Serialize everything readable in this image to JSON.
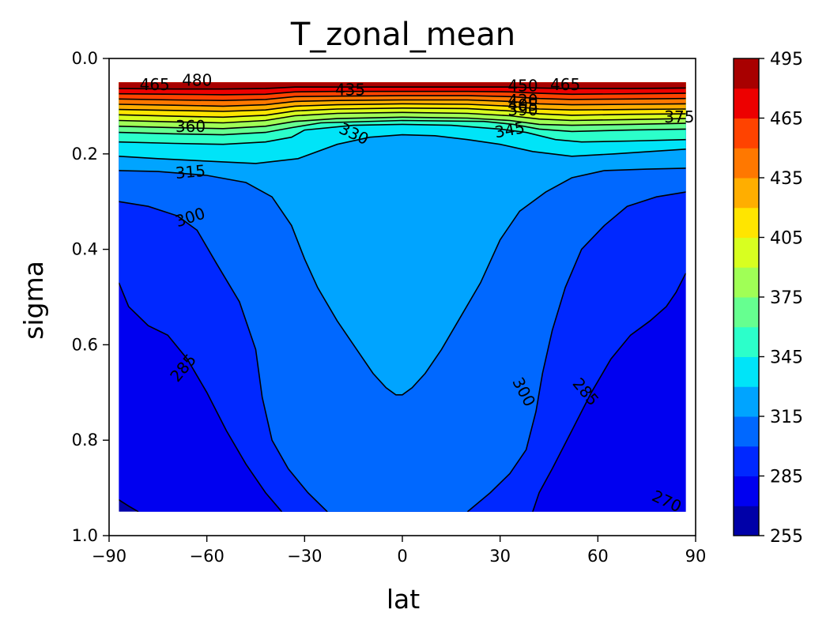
{
  "chart_data": {
    "type": "heatmap",
    "subtype": "filled-contour",
    "title": "T_zonal_mean",
    "xlabel": "lat",
    "ylabel": "sigma",
    "xlim": [
      -90,
      90
    ],
    "ylim": [
      1.0,
      0.0
    ],
    "y_inverted": true,
    "data_extent": {
      "lat": [
        -87,
        87
      ],
      "sigma": [
        0.05,
        0.95
      ]
    },
    "xticks": [
      "−90",
      "−60",
      "−30",
      "0",
      "30",
      "60",
      "90"
    ],
    "xtick_values": [
      -90,
      -60,
      -30,
      0,
      30,
      60,
      90
    ],
    "yticks": [
      "0.0",
      "0.2",
      "0.4",
      "0.6",
      "0.8",
      "1.0"
    ],
    "ytick_values": [
      0.0,
      0.2,
      0.4,
      0.6,
      0.8,
      1.0
    ],
    "colormap": "jet",
    "levels": [
      255,
      270,
      285,
      300,
      315,
      330,
      345,
      360,
      375,
      390,
      405,
      420,
      435,
      450,
      465,
      480,
      495
    ],
    "level_colors": [
      "#0000a8",
      "#0000f0",
      "#0028ff",
      "#0068ff",
      "#00a4ff",
      "#00e4f8",
      "#2cffca",
      "#66ff90",
      "#a0ff56",
      "#d8ff20",
      "#ffe500",
      "#ffae00",
      "#ff7800",
      "#ff4300",
      "#ed0000",
      "#a80000"
    ],
    "colorbar_ticks": [
      "255",
      "285",
      "315",
      "345",
      "375",
      "405",
      "435",
      "465",
      "495"
    ],
    "colorbar_tick_values": [
      255,
      285,
      315,
      345,
      375,
      405,
      435,
      465,
      495
    ],
    "grid": false,
    "contours": [
      {
        "level": 270,
        "points": [
          [
            -87,
            0.925
          ],
          [
            -84,
            0.938
          ],
          [
            -81,
            0.95
          ]
        ]
      },
      {
        "level": 285,
        "points": [
          [
            -87,
            0.47
          ],
          [
            -84,
            0.52
          ],
          [
            -78,
            0.56
          ],
          [
            -72,
            0.58
          ],
          [
            -66,
            0.63
          ],
          [
            -60,
            0.7
          ],
          [
            -54,
            0.78
          ],
          [
            -48,
            0.85
          ],
          [
            -42,
            0.91
          ],
          [
            -37,
            0.95
          ]
        ]
      },
      {
        "level": 285,
        "points": [
          [
            87,
            0.45
          ],
          [
            84,
            0.49
          ],
          [
            81,
            0.52
          ],
          [
            76,
            0.55
          ],
          [
            70,
            0.58
          ],
          [
            64,
            0.63
          ],
          [
            58,
            0.7
          ],
          [
            52,
            0.78
          ],
          [
            46,
            0.86
          ],
          [
            42,
            0.91
          ],
          [
            40,
            0.95
          ]
        ]
      },
      {
        "level": 300,
        "points": [
          [
            -87,
            0.3
          ],
          [
            -78,
            0.31
          ],
          [
            -69,
            0.33
          ],
          [
            -63,
            0.36
          ],
          [
            -57,
            0.43
          ],
          [
            -50,
            0.51
          ],
          [
            -45,
            0.61
          ],
          [
            -43,
            0.71
          ],
          [
            -40,
            0.8
          ],
          [
            -35,
            0.86
          ],
          [
            -29,
            0.91
          ],
          [
            -23,
            0.95
          ]
        ]
      },
      {
        "level": 300,
        "points": [
          [
            87,
            0.28
          ],
          [
            78,
            0.29
          ],
          [
            69,
            0.31
          ],
          [
            62,
            0.35
          ],
          [
            55,
            0.4
          ],
          [
            50,
            0.48
          ],
          [
            46,
            0.57
          ],
          [
            43,
            0.66
          ],
          [
            41,
            0.74
          ],
          [
            38,
            0.82
          ],
          [
            33,
            0.87
          ],
          [
            27,
            0.91
          ],
          [
            20,
            0.95
          ]
        ]
      },
      {
        "level": 315,
        "points": [
          [
            -87,
            0.235
          ],
          [
            -75,
            0.237
          ],
          [
            -60,
            0.245
          ],
          [
            -48,
            0.26
          ],
          [
            -40,
            0.29
          ],
          [
            -34,
            0.35
          ],
          [
            -30,
            0.42
          ],
          [
            -26,
            0.48
          ],
          [
            -20,
            0.55
          ],
          [
            -14,
            0.61
          ],
          [
            -9,
            0.66
          ],
          [
            -5,
            0.69
          ],
          [
            -2,
            0.705
          ],
          [
            0,
            0.705
          ],
          [
            3,
            0.69
          ],
          [
            7,
            0.66
          ],
          [
            12,
            0.61
          ],
          [
            18,
            0.54
          ],
          [
            24,
            0.47
          ],
          [
            30,
            0.38
          ],
          [
            36,
            0.32
          ],
          [
            44,
            0.28
          ],
          [
            52,
            0.25
          ],
          [
            62,
            0.235
          ],
          [
            75,
            0.232
          ],
          [
            87,
            0.23
          ]
        ]
      },
      {
        "level": 330,
        "points": [
          [
            -87,
            0.205
          ],
          [
            -75,
            0.21
          ],
          [
            -60,
            0.215
          ],
          [
            -45,
            0.22
          ],
          [
            -32,
            0.21
          ],
          [
            -20,
            0.18
          ],
          [
            -10,
            0.165
          ],
          [
            0,
            0.16
          ],
          [
            10,
            0.162
          ],
          [
            20,
            0.17
          ],
          [
            30,
            0.18
          ],
          [
            40,
            0.195
          ],
          [
            52,
            0.205
          ],
          [
            65,
            0.2
          ],
          [
            87,
            0.19
          ]
        ]
      },
      {
        "level": 345,
        "points": [
          [
            -87,
            0.175
          ],
          [
            -70,
            0.178
          ],
          [
            -55,
            0.18
          ],
          [
            -42,
            0.175
          ],
          [
            -34,
            0.165
          ],
          [
            -30,
            0.15
          ],
          [
            -15,
            0.14
          ],
          [
            0,
            0.138
          ],
          [
            15,
            0.14
          ],
          [
            30,
            0.148
          ],
          [
            38,
            0.155
          ],
          [
            47,
            0.17
          ],
          [
            55,
            0.175
          ],
          [
            70,
            0.173
          ],
          [
            87,
            0.17
          ]
        ]
      },
      {
        "level": 360,
        "points": [
          [
            -87,
            0.155
          ],
          [
            -70,
            0.158
          ],
          [
            -55,
            0.16
          ],
          [
            -42,
            0.155
          ],
          [
            -34,
            0.145
          ],
          [
            -25,
            0.135
          ],
          [
            0,
            0.13
          ],
          [
            25,
            0.132
          ],
          [
            34,
            0.138
          ],
          [
            42,
            0.148
          ],
          [
            52,
            0.153
          ],
          [
            70,
            0.15
          ],
          [
            87,
            0.148
          ]
        ]
      },
      {
        "level": 375,
        "points": [
          [
            -87,
            0.142
          ],
          [
            -70,
            0.145
          ],
          [
            -55,
            0.147
          ],
          [
            -42,
            0.142
          ],
          [
            -33,
            0.132
          ],
          [
            -20,
            0.126
          ],
          [
            0,
            0.123
          ],
          [
            20,
            0.125
          ],
          [
            33,
            0.13
          ],
          [
            42,
            0.138
          ],
          [
            52,
            0.14
          ],
          [
            70,
            0.138
          ],
          [
            87,
            0.136
          ]
        ]
      },
      {
        "level": 390,
        "points": [
          [
            -87,
            0.13
          ],
          [
            -70,
            0.133
          ],
          [
            -55,
            0.135
          ],
          [
            -42,
            0.13
          ],
          [
            -33,
            0.12
          ],
          [
            -20,
            0.115
          ],
          [
            0,
            0.113
          ],
          [
            20,
            0.115
          ],
          [
            33,
            0.12
          ],
          [
            42,
            0.127
          ],
          [
            52,
            0.13
          ],
          [
            70,
            0.128
          ],
          [
            87,
            0.126
          ]
        ]
      },
      {
        "level": 405,
        "points": [
          [
            -87,
            0.118
          ],
          [
            -70,
            0.121
          ],
          [
            -55,
            0.123
          ],
          [
            -42,
            0.119
          ],
          [
            -33,
            0.11
          ],
          [
            -20,
            0.106
          ],
          [
            0,
            0.104
          ],
          [
            20,
            0.105
          ],
          [
            33,
            0.11
          ],
          [
            42,
            0.116
          ],
          [
            52,
            0.119
          ],
          [
            70,
            0.117
          ],
          [
            87,
            0.116
          ]
        ]
      },
      {
        "level": 420,
        "points": [
          [
            -87,
            0.107
          ],
          [
            -70,
            0.109
          ],
          [
            -55,
            0.111
          ],
          [
            -42,
            0.108
          ],
          [
            -33,
            0.1
          ],
          [
            -20,
            0.097
          ],
          [
            0,
            0.095
          ],
          [
            20,
            0.096
          ],
          [
            33,
            0.1
          ],
          [
            42,
            0.106
          ],
          [
            52,
            0.108
          ],
          [
            70,
            0.107
          ],
          [
            87,
            0.106
          ]
        ]
      },
      {
        "level": 435,
        "points": [
          [
            -87,
            0.096
          ],
          [
            -70,
            0.098
          ],
          [
            -55,
            0.1
          ],
          [
            -42,
            0.097
          ],
          [
            -33,
            0.09
          ],
          [
            -20,
            0.088
          ],
          [
            0,
            0.087
          ],
          [
            20,
            0.087
          ],
          [
            33,
            0.09
          ],
          [
            42,
            0.095
          ],
          [
            52,
            0.097
          ],
          [
            70,
            0.096
          ],
          [
            87,
            0.095
          ]
        ]
      },
      {
        "level": 450,
        "points": [
          [
            -87,
            0.085
          ],
          [
            -70,
            0.087
          ],
          [
            -55,
            0.088
          ],
          [
            -42,
            0.086
          ],
          [
            -33,
            0.08
          ],
          [
            -20,
            0.079
          ],
          [
            0,
            0.078
          ],
          [
            20,
            0.078
          ],
          [
            33,
            0.08
          ],
          [
            42,
            0.084
          ],
          [
            52,
            0.086
          ],
          [
            70,
            0.085
          ],
          [
            87,
            0.084
          ]
        ]
      },
      {
        "level": 465,
        "points": [
          [
            -87,
            0.074
          ],
          [
            -70,
            0.075
          ],
          [
            -55,
            0.076
          ],
          [
            -42,
            0.075
          ],
          [
            -33,
            0.07
          ],
          [
            -20,
            0.069
          ],
          [
            0,
            0.069
          ],
          [
            20,
            0.069
          ],
          [
            33,
            0.07
          ],
          [
            42,
            0.073
          ],
          [
            52,
            0.075
          ],
          [
            70,
            0.074
          ],
          [
            87,
            0.073
          ]
        ]
      },
      {
        "level": 480,
        "points": [
          [
            -87,
            0.063
          ],
          [
            -70,
            0.064
          ],
          [
            -55,
            0.064
          ],
          [
            -42,
            0.063
          ],
          [
            -33,
            0.06
          ],
          [
            -20,
            0.06
          ],
          [
            0,
            0.06
          ],
          [
            20,
            0.06
          ],
          [
            33,
            0.06
          ],
          [
            42,
            0.062
          ],
          [
            52,
            0.063
          ],
          [
            70,
            0.063
          ],
          [
            87,
            0.062
          ]
        ]
      }
    ],
    "contour_labels": [
      {
        "text": "465",
        "lat": -76,
        "sigma": 0.057,
        "angle": 0
      },
      {
        "text": "480",
        "lat": -63,
        "sigma": 0.048,
        "angle": 0
      },
      {
        "text": "435",
        "lat": -16,
        "sigma": 0.068,
        "angle": 0
      },
      {
        "text": "450",
        "lat": 37,
        "sigma": 0.06,
        "angle": 0
      },
      {
        "text": "465",
        "lat": 50,
        "sigma": 0.057,
        "angle": 0
      },
      {
        "text": "420",
        "lat": 37,
        "sigma": 0.09,
        "angle": 0
      },
      {
        "text": "405",
        "lat": 37,
        "sigma": 0.1,
        "angle": 0
      },
      {
        "text": "390",
        "lat": 37,
        "sigma": 0.11,
        "angle": 0
      },
      {
        "text": "375",
        "lat": 85,
        "sigma": 0.125,
        "angle": 0
      },
      {
        "text": "360",
        "lat": -65,
        "sigma": 0.145,
        "angle": 0
      },
      {
        "text": "330",
        "lat": -15,
        "sigma": 0.16,
        "angle": 25
      },
      {
        "text": "345",
        "lat": 33,
        "sigma": 0.152,
        "angle": -10
      },
      {
        "text": "315",
        "lat": -65,
        "sigma": 0.24,
        "angle": -5
      },
      {
        "text": "300",
        "lat": -65,
        "sigma": 0.335,
        "angle": -18
      },
      {
        "text": "285",
        "lat": -67,
        "sigma": 0.65,
        "angle": -50
      },
      {
        "text": "300",
        "lat": 37,
        "sigma": 0.7,
        "angle": 62
      },
      {
        "text": "285",
        "lat": 56,
        "sigma": 0.7,
        "angle": 50
      },
      {
        "text": "270",
        "lat": 81,
        "sigma": 0.93,
        "angle": 25
      }
    ]
  }
}
